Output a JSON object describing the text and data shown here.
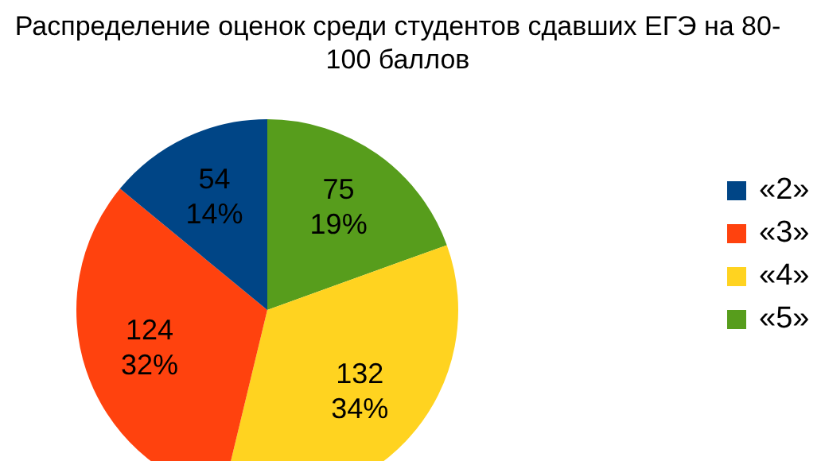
{
  "chart_data": {
    "type": "pie",
    "title": "Распределение оценок среди студентов сдавших ЕГЭ на 80-100 баллов",
    "categories": [
      "«2»",
      "«3»",
      "«4»",
      "«5»"
    ],
    "values": [
      54,
      124,
      132,
      75
    ],
    "colors": [
      "#004586",
      "#ff420e",
      "#ffd320",
      "#579d1c"
    ],
    "value_labels": [
      "54\n14%",
      "124\n32%",
      "132\n34%",
      "75\n19%"
    ],
    "legend": "right"
  }
}
